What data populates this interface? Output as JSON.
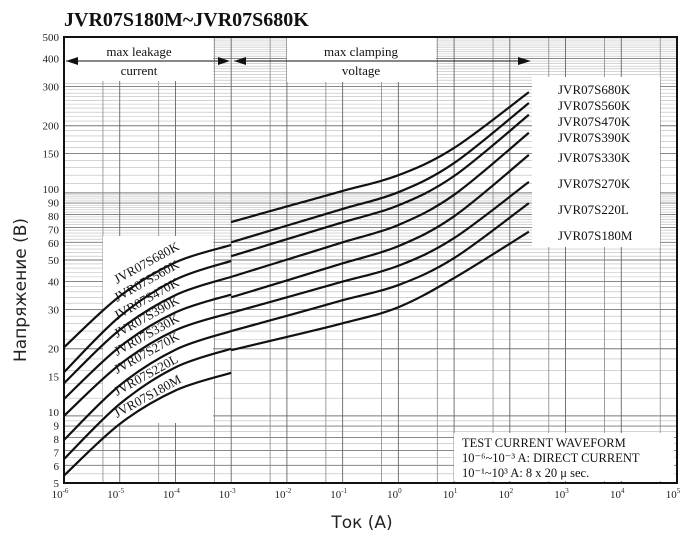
{
  "chart_data": {
    "type": "line",
    "title": "JVR07S180M~JVR07S680K",
    "xlabel": "Ток (А)",
    "ylabel": "Напряжение (В)",
    "xscale": "log",
    "yscale": "log",
    "xlim": [
      1e-06,
      100000
    ],
    "ylim": [
      5,
      500
    ],
    "grid": true,
    "x_tick_exponents": [
      "-6",
      "-5",
      "-4",
      "-3",
      "-2",
      "-1",
      "0",
      "1",
      "2",
      "3",
      "4",
      "5"
    ],
    "y_ticks": [
      5,
      6,
      7,
      8,
      9,
      10,
      15,
      20,
      30,
      40,
      50,
      60,
      70,
      80,
      90,
      100,
      150,
      200,
      300,
      400,
      500
    ],
    "regions": {
      "leakage": {
        "line1": "max leakage",
        "line2": "current"
      },
      "clamping": {
        "line1": "max clamping",
        "line2": "voltage"
      }
    },
    "note": {
      "line1": "TEST CURRENT WAVEFORM",
      "line2": "10⁻⁶~10⁻³  A: DIRECT CURRENT",
      "line3": "10⁻¹~10³  A: 8 x 20  μ  sec."
    },
    "leakage_x": [
      1e-06,
      1e-05,
      0.0001,
      0.001
    ],
    "clamping_x": [
      0.001,
      0.01,
      0.1,
      1,
      10,
      220
    ],
    "series": [
      {
        "name": "JVR07S680K",
        "leakage": [
          20.3,
          34.4,
          48.8,
          58.4
        ],
        "clamping": [
          74,
          86.9,
          102,
          120,
          159,
          283
        ]
      },
      {
        "name": "JVR07S560K",
        "leakage": [
          15.7,
          27.9,
          40.8,
          49.5
        ],
        "clamping": [
          60,
          71.3,
          84.7,
          100.7,
          136,
          253
        ]
      },
      {
        "name": "JVR07S470K",
        "leakage": [
          14,
          24.3,
          34.8,
          42
        ],
        "clamping": [
          52,
          62,
          73.8,
          87.9,
          119,
          224
        ]
      },
      {
        "name": "JVR07S390K",
        "leakage": [
          11.9,
          20.4,
          29.1,
          35
        ],
        "clamping": [
          42,
          50.2,
          60,
          71.8,
          98,
          186
        ]
      },
      {
        "name": "JVR07S330K",
        "leakage": [
          10,
          17,
          24.2,
          29
        ],
        "clamping": [
          34,
          40.5,
          48.3,
          57.7,
          78.5,
          148
        ]
      },
      {
        "name": "JVR07S270K",
        "leakage": [
          7.8,
          13.7,
          19.8,
          24
        ],
        "clamping": [
          29,
          34,
          40,
          47.1,
          62.7,
          112
        ]
      },
      {
        "name": "JVR07S220L",
        "leakage": [
          6.4,
          11.3,
          16.5,
          20
        ],
        "clamping": [
          24,
          28.1,
          33,
          38.6,
          51,
          90
        ]
      },
      {
        "name": "JVR07S180M",
        "leakage": [
          5.4,
          9.2,
          13.0,
          15.6
        ],
        "clamping": [
          19.7,
          22.6,
          26,
          30.7,
          41.5,
          67
        ]
      }
    ]
  }
}
